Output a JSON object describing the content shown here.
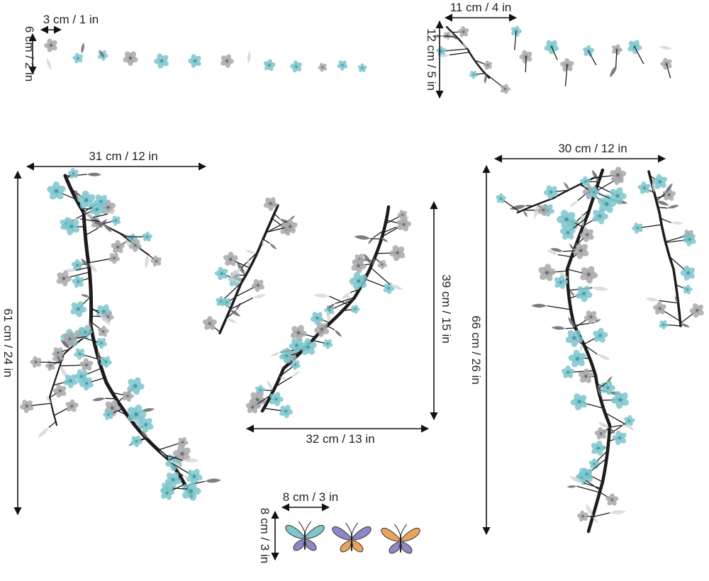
{
  "dimensions": {
    "small_flowers_width": "3 cm / 1 in",
    "small_flowers_height": "6 cm / 2 in",
    "sprigs_width": "11 cm / 4 in",
    "sprigs_height": "12 cm / 5 in",
    "left_branch_width": "31 cm / 12 in",
    "left_branch_height": "61 cm / 24 in",
    "middle_branch_width": "32 cm / 13 in",
    "middle_branch_height": "39 cm / 15 in",
    "right_branch_width": "30 cm / 12 in",
    "right_branch_height": "66 cm / 26 in",
    "butterfly_width": "8 cm / 3 in",
    "butterfly_height": "8 cm / 3 in"
  },
  "colors": {
    "teal_blossom": "#7cc6cc",
    "teal_dark": "#4a9aa4",
    "grey_blossom": "#a8a8ac",
    "grey_dark": "#6e6e74",
    "branch": "#1c1c1e",
    "leaf_light": "#cfd6d6",
    "dimension_line": "#111111",
    "butterfly_purple": "#8f86c8",
    "butterfly_orange": "#e9a45c"
  }
}
